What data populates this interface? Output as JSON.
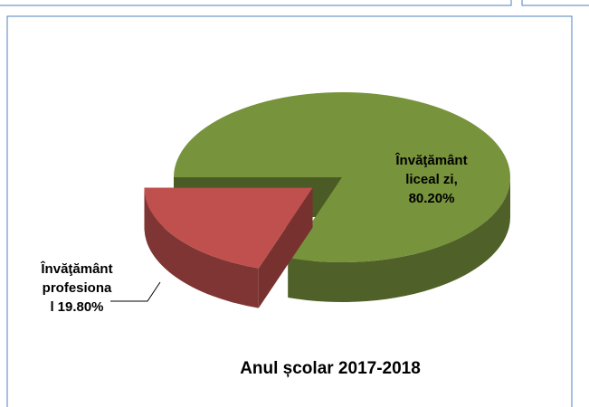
{
  "chart_data": {
    "type": "pie3d",
    "title": "Anul școlar 2017-2018",
    "categories": [
      "Învăţământ liceal zi",
      "Învăţământ profesional"
    ],
    "category_lines": [
      [
        "Învăţământ",
        "liceal zi,"
      ],
      [
        "Învăţământ",
        "profesiona",
        "l"
      ]
    ],
    "values": [
      80.2,
      19.8
    ],
    "value_labels": [
      "80.20%",
      "19.80%"
    ],
    "colors": [
      "#77933c",
      "#c0504d"
    ],
    "exploded": [
      false,
      true
    ]
  }
}
